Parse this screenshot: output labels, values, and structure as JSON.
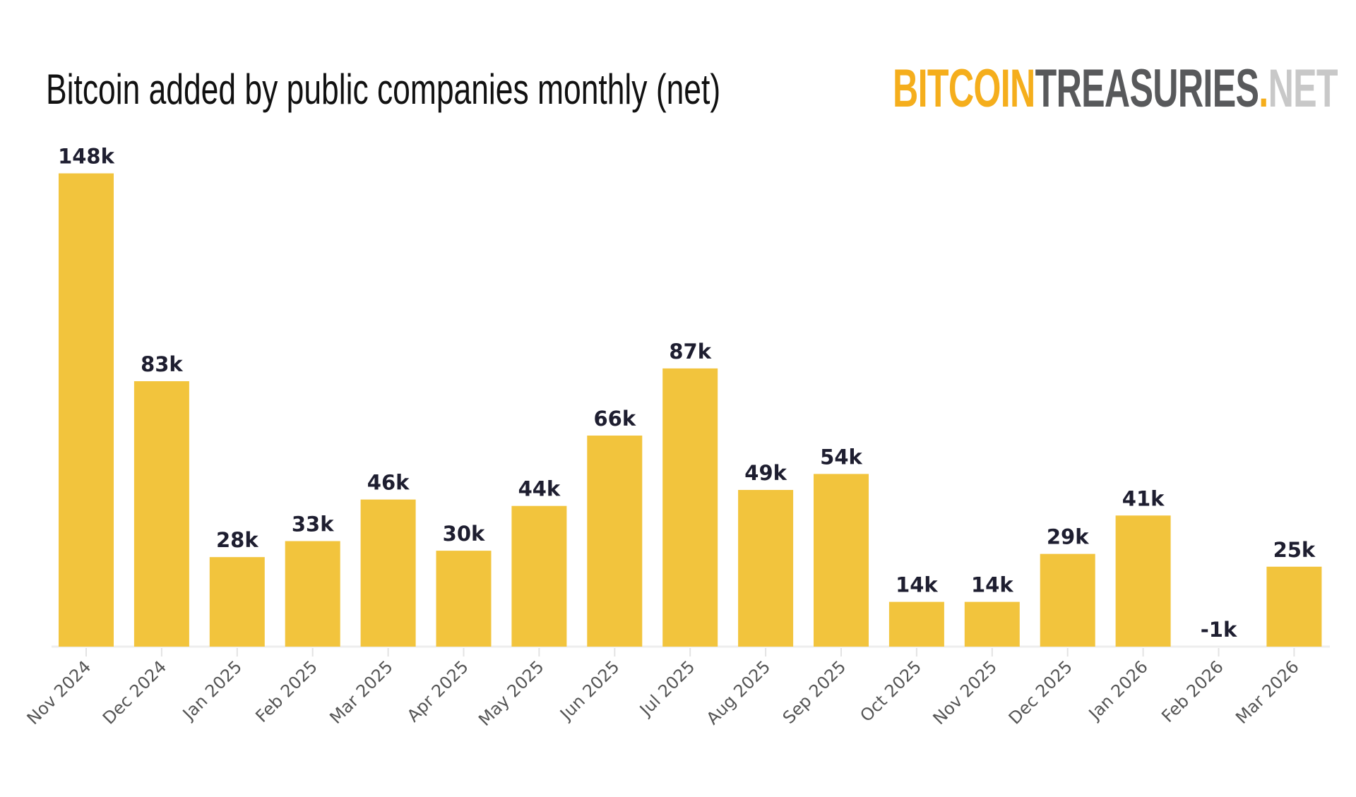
{
  "chart_data": {
    "type": "bar",
    "title": "Bitcoin added by public companies monthly (net)",
    "categories": [
      "Nov 2024",
      "Dec 2024",
      "Jan 2025",
      "Feb 2025",
      "Mar 2025",
      "Apr 2025",
      "May 2025",
      "Jun 2025",
      "Jul 2025",
      "Aug 2025",
      "Sep 2025",
      "Oct 2025",
      "Nov 2025",
      "Dec 2025",
      "Jan 2026",
      "Feb 2026",
      "Mar 2026"
    ],
    "values": [
      148,
      83,
      28,
      33,
      46,
      30,
      44,
      66,
      87,
      49,
      54,
      14,
      14,
      29,
      41,
      -1,
      25
    ],
    "data_labels": [
      "148k",
      "83k",
      "28k",
      "33k",
      "46k",
      "30k",
      "44k",
      "66k",
      "87k",
      "49k",
      "54k",
      "14k",
      "14k",
      "29k",
      "41k",
      "-1k",
      "25k"
    ],
    "unit": "k",
    "xlabel": "",
    "ylabel": "",
    "grid": false,
    "bar_color": "#F2C43D"
  },
  "logo": {
    "part1": "BITCOIN",
    "part2": "TREASURIES",
    "part3": ".",
    "part4": "NET"
  }
}
